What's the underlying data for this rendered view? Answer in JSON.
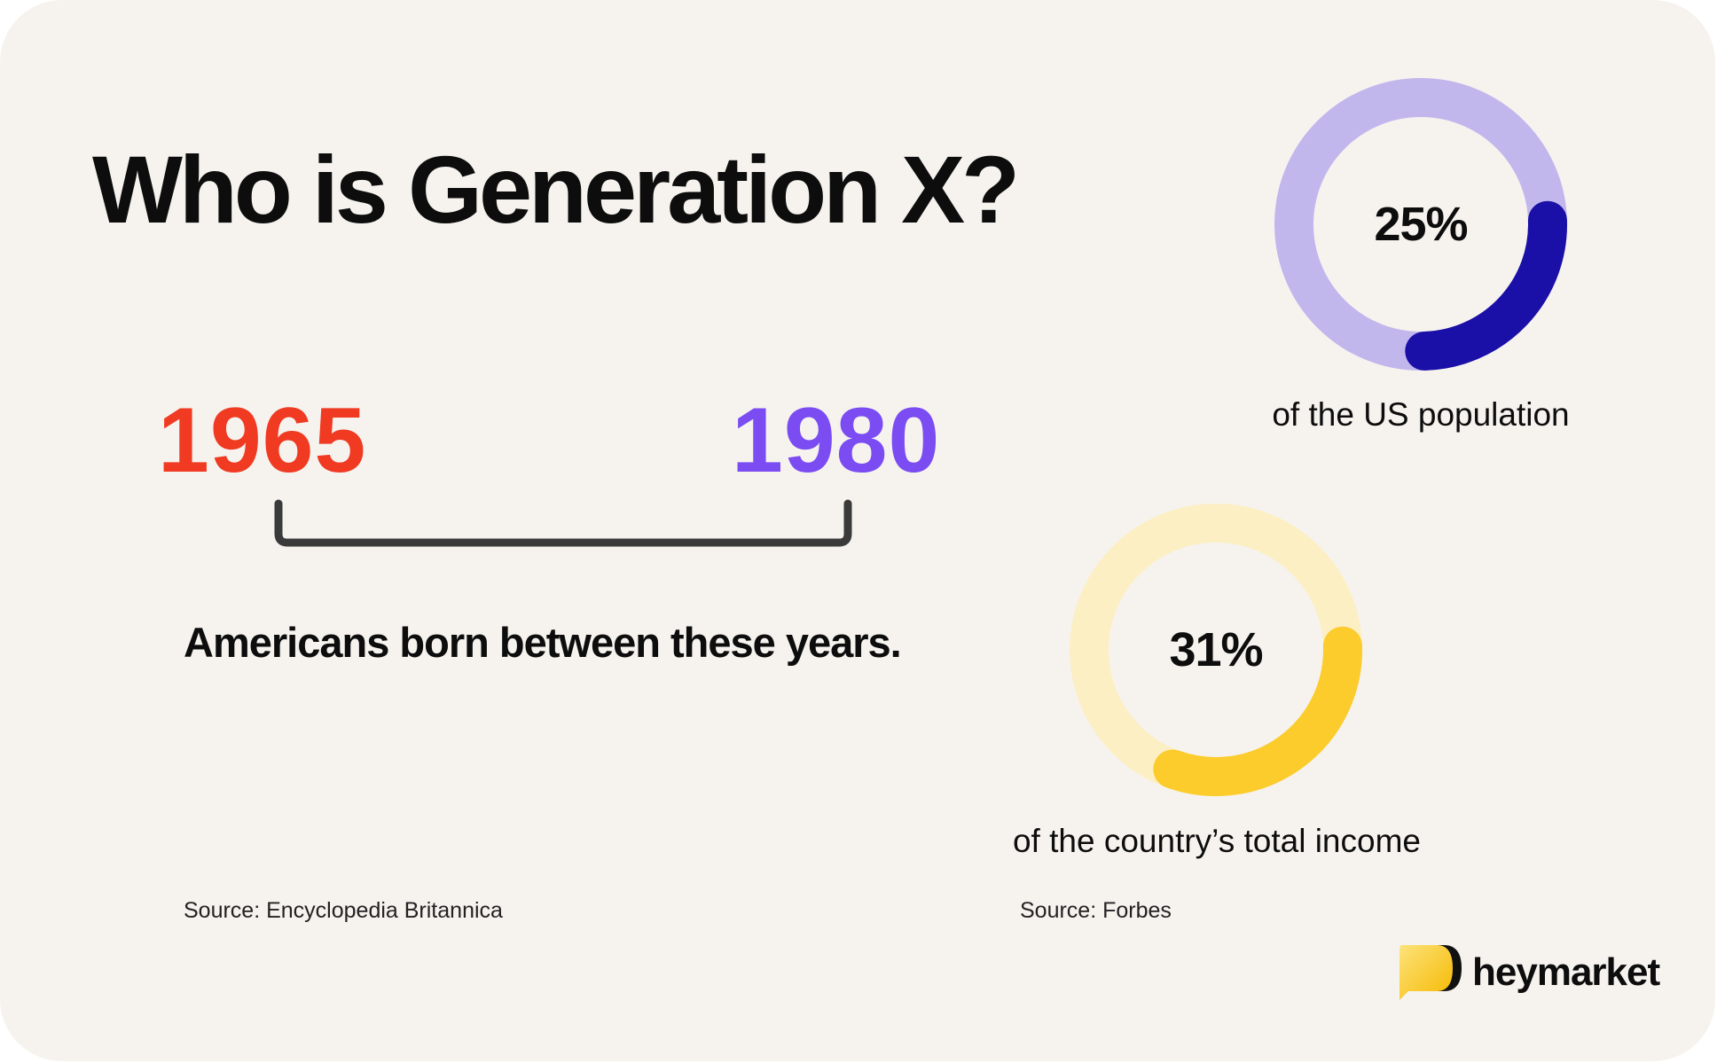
{
  "title": "Who is Generation X?",
  "timeline": {
    "start_year": "1965",
    "end_year": "1980",
    "caption": "Americans born between these years.",
    "source": "Source: Encyclopedia Britannica",
    "colors": {
      "start": "#f03a22",
      "end": "#7a4cf2",
      "bracket": "#3a3a3a"
    }
  },
  "chart_data": [
    {
      "type": "pie",
      "donut": true,
      "values": [
        25,
        75
      ],
      "value_label": "25%",
      "caption": "of the US population",
      "colors": {
        "value": "#1a0fa6",
        "track": "#c2b7ec"
      }
    },
    {
      "type": "pie",
      "donut": true,
      "values": [
        31,
        69
      ],
      "value_label": "31%",
      "caption": "of the country’s total income",
      "colors": {
        "value": "#fccb2c",
        "track": "#fcefc4"
      }
    }
  ],
  "stats_source": "Source: Forbes",
  "brand": {
    "name": "heymarket",
    "icon": "speech-bubble-logo-icon",
    "color": "#fcd01e"
  }
}
